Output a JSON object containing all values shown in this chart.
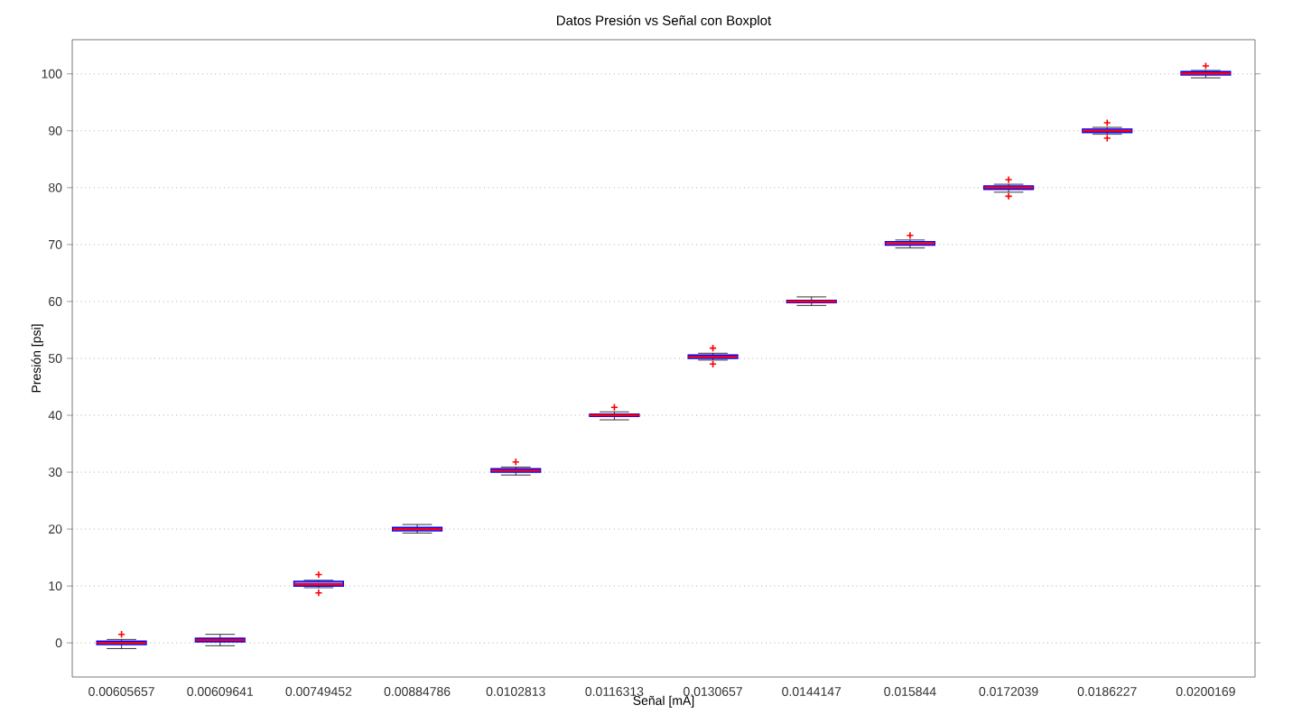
{
  "chart_data": {
    "type": "box",
    "title": "Datos Presión vs Señal con Boxplot",
    "xlabel": "Señal [mA]",
    "ylabel": "Presión [psi]",
    "categories": [
      "0.00605657",
      "0.00609641",
      "0.00749452",
      "0.00884786",
      "0.0102813",
      "0.0116313",
      "0.0130657",
      "0.0144147",
      "0.015844",
      "0.0172039",
      "0.0186227",
      "0.0200169"
    ],
    "ylim": [
      -6,
      106
    ],
    "yticks": [
      0,
      10,
      20,
      30,
      40,
      50,
      60,
      70,
      80,
      90,
      100
    ],
    "grid": "y",
    "marker": "cross",
    "series": [
      {
        "color": "#0000ff",
        "boxes": [
          {
            "low": -1,
            "q1": -0.3,
            "median": 0,
            "q3": 0.3,
            "high": 0.6,
            "outliers": [
              1.5
            ]
          },
          {
            "low": -0.5,
            "q1": 0.2,
            "median": 0.5,
            "q3": 0.8,
            "high": 1.5
          },
          {
            "low": 9.7,
            "q1": 10,
            "median": 10.3,
            "q3": 10.8,
            "high": 11,
            "outliers": [
              8.8,
              12
            ]
          },
          {
            "low": 19.3,
            "q1": 19.7,
            "median": 20,
            "q3": 20.3,
            "high": 20.8
          },
          {
            "low": 29.5,
            "q1": 30,
            "median": 30.3,
            "q3": 30.6,
            "high": 30.9,
            "outliers": [
              31.8
            ]
          },
          {
            "low": 39.2,
            "q1": 39.8,
            "median": 40,
            "q3": 40.2,
            "high": 40.6,
            "outliers": [
              41.4
            ]
          },
          {
            "low": 49.7,
            "q1": 50,
            "median": 50.3,
            "q3": 50.6,
            "high": 50.9,
            "outliers": [
              49,
              51.8
            ]
          },
          {
            "low": 59.3,
            "q1": 59.8,
            "median": 60,
            "q3": 60.2,
            "high": 60.8
          },
          {
            "low": 69.4,
            "q1": 69.9,
            "median": 70.2,
            "q3": 70.5,
            "high": 70.8,
            "outliers": [
              71.6
            ]
          },
          {
            "low": 79.2,
            "q1": 79.7,
            "median": 80,
            "q3": 80.3,
            "high": 80.6,
            "outliers": [
              78.5,
              81.4
            ]
          },
          {
            "low": 89.4,
            "q1": 89.7,
            "median": 90,
            "q3": 90.3,
            "high": 90.6,
            "outliers": [
              88.7,
              91.4
            ]
          },
          {
            "low": 99.3,
            "q1": 99.8,
            "median": 100.1,
            "q3": 100.4,
            "high": 100.6,
            "outliers": [
              101.4
            ]
          }
        ]
      }
    ]
  }
}
